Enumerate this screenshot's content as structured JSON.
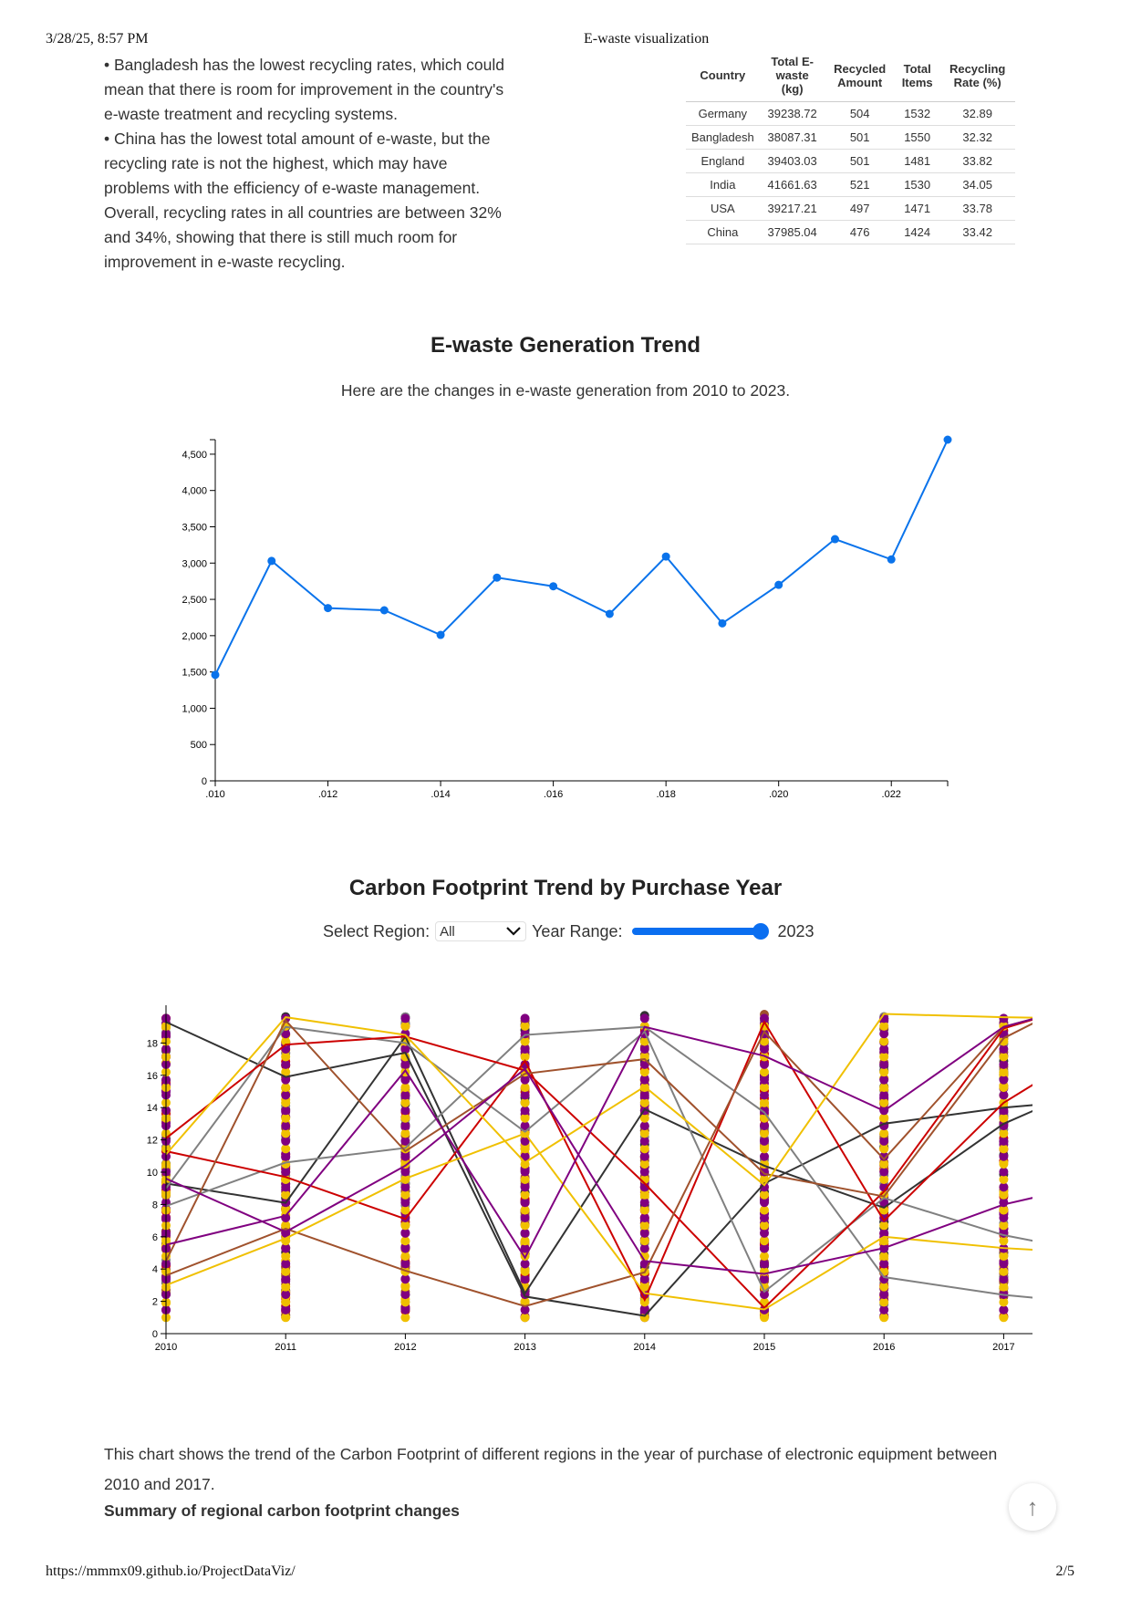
{
  "print_header": {
    "date": "3/28/25, 8:57 PM",
    "title": "E-waste visualization"
  },
  "print_footer": {
    "url": "https://mmmx09.github.io/ProjectDataViz/",
    "page": "2/5"
  },
  "intro": [
    "• Bangladesh has the lowest recycling rates, which could mean that there is room for improvement in the country's e-waste treatment and recycling systems.",
    "• China has the lowest total amount of e-waste, but the recycling rate is not the highest, which may have problems with the efficiency of e-waste management. Overall, recycling rates in all countries are between 32% and 34%, showing that there is still much room for improvement in e-waste recycling."
  ],
  "table": {
    "headers": [
      "Country",
      "Total E-waste (kg)",
      "Recycled Amount",
      "Total Items",
      "Recycling Rate (%)"
    ],
    "rows": [
      [
        "Germany",
        "39238.72",
        "504",
        "1532",
        "32.89"
      ],
      [
        "Bangladesh",
        "38087.31",
        "501",
        "1550",
        "32.32"
      ],
      [
        "England",
        "39403.03",
        "501",
        "1481",
        "33.82"
      ],
      [
        "India",
        "41661.63",
        "521",
        "1530",
        "34.05"
      ],
      [
        "USA",
        "39217.21",
        "497",
        "1471",
        "33.78"
      ],
      [
        "China",
        "37985.04",
        "476",
        "1424",
        "33.42"
      ]
    ]
  },
  "trend": {
    "heading": "E-waste Generation Trend",
    "subtitle": "Here are the changes in e-waste generation from 2010 to 2023."
  },
  "carbon": {
    "heading": "Carbon Footprint Trend by Purchase Year",
    "region_label": "Select Region:",
    "region_value": "All",
    "year_label": "Year Range:",
    "year_value": "2023",
    "description": "This chart shows the trend of the Carbon Footprint of different regions in the year of purchase of electronic equipment between 2010 and 2017.",
    "summary": "Summary of regional carbon footprint changes"
  },
  "chart_data": [
    {
      "type": "line",
      "title": "E-waste Generation Trend",
      "x": [
        2010,
        2011,
        2012,
        2013,
        2014,
        2015,
        2016,
        2017,
        2018,
        2019,
        2020,
        2021,
        2022,
        2023
      ],
      "values": [
        1460,
        3030,
        2380,
        2350,
        2010,
        2800,
        2680,
        2300,
        3090,
        2170,
        2700,
        3330,
        3050,
        4700
      ],
      "xticks": [
        ".010",
        ".012",
        ".014",
        ".016",
        ".018",
        ".020",
        ".022"
      ],
      "yticks": [
        "0",
        "500",
        "1,000",
        "1,500",
        "2,000",
        "2,500",
        "3,000",
        "3,500",
        "4,000",
        "4,500"
      ],
      "ylim": [
        0,
        4700
      ],
      "color": "#0a73eb"
    },
    {
      "type": "line",
      "title": "Carbon Footprint Trend by Purchase Year",
      "x": [
        2010,
        2011,
        2012,
        2013,
        2014,
        2015,
        2016,
        2017
      ],
      "xticks": [
        "2010",
        "2011",
        "2012",
        "2013",
        "2014",
        "2015",
        "2016",
        "2017"
      ],
      "yticks": [
        "0",
        "2",
        "4",
        "6",
        "8",
        "10",
        "12",
        "14",
        "16",
        "18"
      ],
      "ylim": [
        0,
        20
      ],
      "series": [
        {
          "color": "#333333",
          "values": [
            19.3,
            15.9,
            17.4,
            2.3,
            1.1,
            9.3,
            13.0,
            14.0
          ]
        },
        {
          "color": "#333333",
          "values": [
            9.3,
            8.1,
            18.4,
            2.5,
            13.9,
            10.4,
            7.8,
            13.0
          ]
        },
        {
          "color": "#808080",
          "values": [
            7.9,
            10.6,
            11.5,
            18.5,
            19.0,
            13.7,
            3.5,
            2.4
          ]
        },
        {
          "color": "#808080",
          "values": [
            9.0,
            19.0,
            18.0,
            12.5,
            18.7,
            2.6,
            8.4,
            6.1
          ]
        },
        {
          "color": "#cc0000",
          "values": [
            12.1,
            17.9,
            18.4,
            16.3,
            9.3,
            1.6,
            8.8,
            18.9
          ]
        },
        {
          "color": "#cc0000",
          "values": [
            11.3,
            9.7,
            7.1,
            16.9,
            2.1,
            19.3,
            7.0,
            14.3
          ]
        },
        {
          "color": "#a0522d",
          "values": [
            4.5,
            19.4,
            11.3,
            16.1,
            17.0,
            9.9,
            8.5,
            18.3
          ]
        },
        {
          "color": "#a0522d",
          "values": [
            3.6,
            6.5,
            3.9,
            1.7,
            3.8,
            18.7,
            10.8,
            19.0
          ]
        },
        {
          "color": "#f0c000",
          "values": [
            11.1,
            19.6,
            18.5,
            10.6,
            15.3,
            9.2,
            19.8,
            19.6
          ]
        },
        {
          "color": "#f0c000",
          "values": [
            3.0,
            5.9,
            9.6,
            12.4,
            2.5,
            1.5,
            6.0,
            5.3
          ]
        },
        {
          "color": "#800080",
          "values": [
            9.6,
            6.3,
            10.4,
            16.4,
            4.5,
            3.7,
            5.3,
            8.0
          ]
        },
        {
          "color": "#800080",
          "values": [
            5.5,
            7.3,
            16.3,
            4.7,
            19.0,
            17.2,
            13.8,
            19.0
          ]
        }
      ]
    }
  ]
}
